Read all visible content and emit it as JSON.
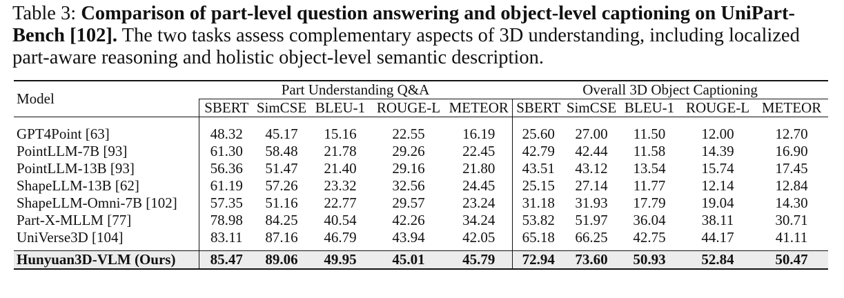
{
  "caption": {
    "label": "Table 3:",
    "title": "Comparison of part-level question answering and object-level captioning on UniPart-Bench [102].",
    "text": "The two tasks assess complementary aspects of 3D understanding, including localized part-aware reasoning and holistic object-level semantic description."
  },
  "table": {
    "model_header": "Model",
    "groups": [
      {
        "name": "Part Understanding Q&A",
        "metrics": [
          "SBERT",
          "SimCSE",
          "BLEU-1",
          "ROUGE-L",
          "METEOR"
        ]
      },
      {
        "name": "Overall 3D Object Captioning",
        "metrics": [
          "SBERT",
          "SimCSE",
          "BLEU-1",
          "ROUGE-L",
          "METEOR"
        ]
      }
    ],
    "rows": [
      [
        "GPT4Point [63]",
        "48.32",
        "45.17",
        "15.16",
        "22.55",
        "16.19",
        "25.60",
        "27.00",
        "11.50",
        "12.00",
        "12.70"
      ],
      [
        "PointLLM-7B [93]",
        "61.30",
        "58.48",
        "21.78",
        "29.26",
        "22.45",
        "42.79",
        "42.44",
        "11.58",
        "14.39",
        "16.90"
      ],
      [
        "PointLLM-13B [93]",
        "56.36",
        "51.47",
        "21.40",
        "29.16",
        "21.80",
        "43.51",
        "43.12",
        "13.54",
        "15.74",
        "17.45"
      ],
      [
        "ShapeLLM-13B [62]",
        "61.19",
        "57.26",
        "23.32",
        "32.56",
        "24.45",
        "25.15",
        "27.14",
        "11.77",
        "12.14",
        "12.84"
      ],
      [
        "ShapeLLM-Omni-7B [102]",
        "57.35",
        "51.16",
        "22.77",
        "29.57",
        "23.24",
        "31.18",
        "31.93",
        "17.79",
        "19.04",
        "14.30"
      ],
      [
        "Part-X-MLLM [77]",
        "78.98",
        "84.25",
        "40.54",
        "42.26",
        "34.24",
        "53.82",
        "51.97",
        "36.04",
        "38.11",
        "30.71"
      ],
      [
        "UniVerse3D [104]",
        "83.11",
        "87.16",
        "46.79",
        "43.94",
        "42.05",
        "65.18",
        "66.25",
        "42.75",
        "44.17",
        "41.11"
      ]
    ],
    "ours": [
      "Hunyuan3D-VLM (Ours)",
      "85.47",
      "89.06",
      "49.95",
      "45.01",
      "45.79",
      "72.94",
      "73.60",
      "50.93",
      "52.84",
      "50.47"
    ]
  }
}
